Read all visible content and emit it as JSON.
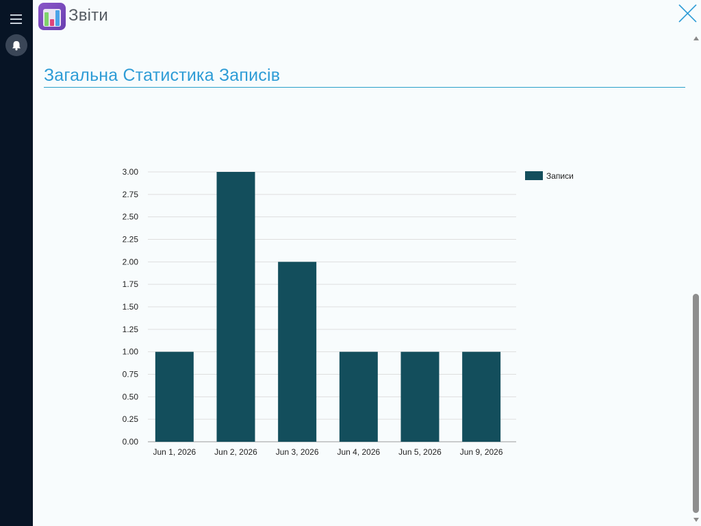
{
  "app": {
    "title": "Звіти",
    "menu_icon": "hamburger-icon",
    "notifications_icon": "bell-icon",
    "close_icon": "close-icon"
  },
  "section": {
    "title": "Загальна Статистика Записів"
  },
  "colors": {
    "sidebar": "#071425",
    "accent": "#2e9cd6",
    "bar": "#134e5c",
    "background": "#f8fcfd"
  },
  "chart_data": {
    "type": "bar",
    "categories": [
      "Jun 1, 2026",
      "Jun 2, 2026",
      "Jun 3, 2026",
      "Jun 4, 2026",
      "Jun 5, 2026",
      "Jun 9, 2026"
    ],
    "series": [
      {
        "name": "Записи",
        "values": [
          1,
          3,
          2,
          1,
          1,
          1
        ]
      }
    ],
    "ylim": [
      0,
      3
    ],
    "y_ticks": [
      "0.00",
      "0.25",
      "0.50",
      "0.75",
      "1.00",
      "1.25",
      "1.50",
      "1.75",
      "2.00",
      "2.25",
      "2.50",
      "2.75",
      "3.00"
    ],
    "grid": true,
    "legend": "top-right",
    "title": "",
    "xlabel": "",
    "ylabel": ""
  }
}
